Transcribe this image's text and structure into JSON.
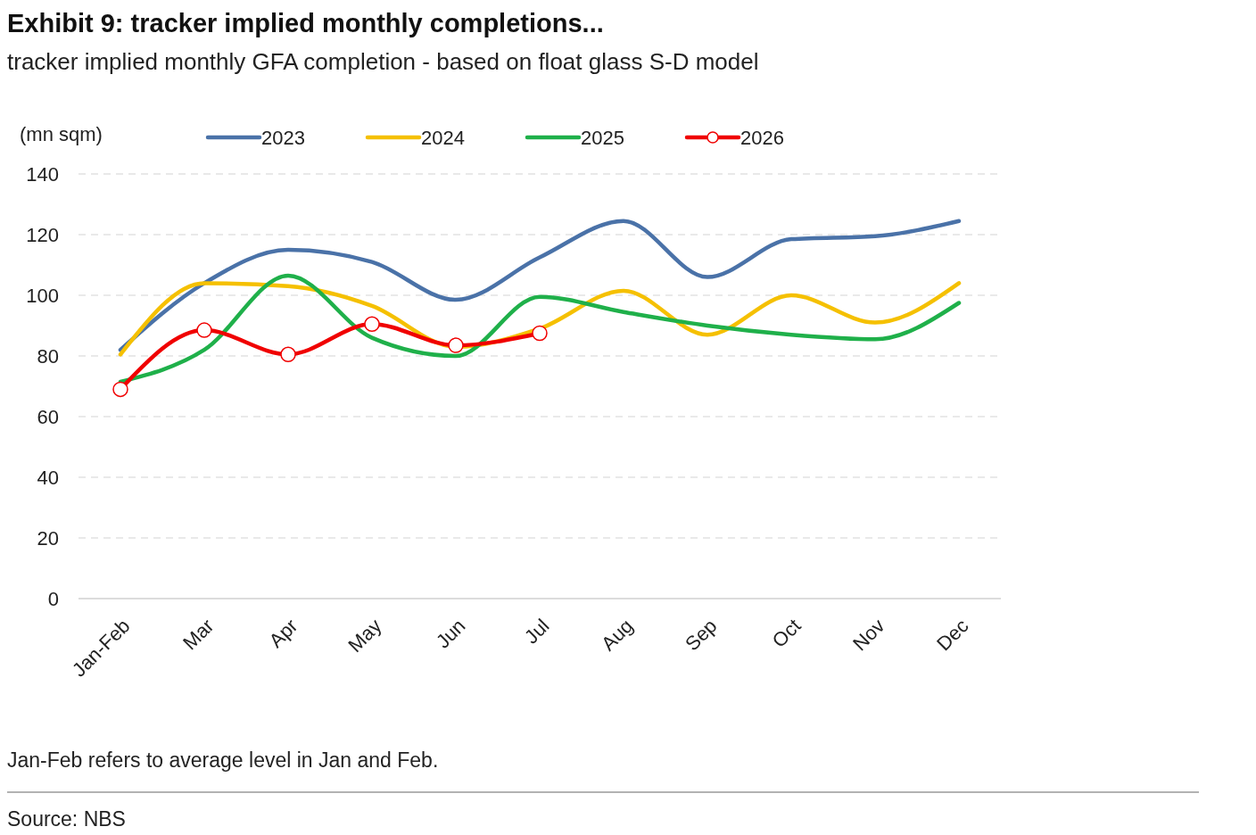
{
  "chart_data": {
    "type": "line",
    "title": "Exhibit 9: tracker implied monthly completions...",
    "subtitle": "tracker implied monthly GFA completion - based on float glass S-D model",
    "ylabel": "(mn sqm)",
    "categories": [
      "Jan-Feb",
      "Mar",
      "Apr",
      "May",
      "Jun",
      "Jul",
      "Aug",
      "Sep",
      "Oct",
      "Nov",
      "Dec"
    ],
    "series": [
      {
        "name": "2023",
        "color": "#4a72a8",
        "values": [
          82,
          104,
          115,
          111,
          98.5,
          112.5,
          124.5,
          106,
          118.5,
          119.5,
          124.5
        ]
      },
      {
        "name": "2024",
        "color": "#f5c000",
        "values": [
          80.5,
          104,
          103,
          96.5,
          83,
          89,
          101.5,
          87,
          100,
          91,
          104
        ]
      },
      {
        "name": "2025",
        "color": "#1fb04a",
        "values": [
          71.5,
          82,
          106.5,
          86,
          80,
          99.5,
          94.5,
          90,
          87,
          85.5,
          97.5
        ]
      },
      {
        "name": "2026",
        "color": "#f00000",
        "marker": "circle",
        "values": [
          69,
          88.5,
          80.5,
          90.5,
          83.5,
          87.5,
          null,
          null,
          null,
          null,
          null
        ]
      }
    ],
    "ylim": [
      0,
      140
    ],
    "yticks": [
      0,
      20,
      40,
      60,
      80,
      100,
      120,
      140
    ],
    "grid": "y",
    "legend": "top",
    "marker": "none",
    "line_style": "solid",
    "annotations": [
      "Jan-Feb refers to average level in Jan and Feb.",
      "Source: NBS"
    ]
  }
}
